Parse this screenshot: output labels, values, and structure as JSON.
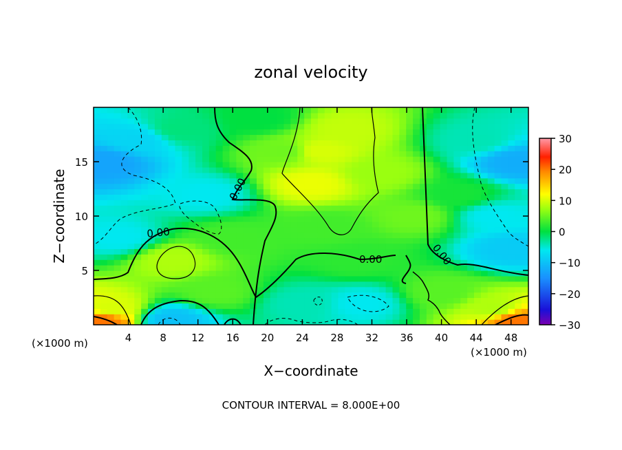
{
  "chart_data": {
    "type": "heatmap",
    "title": "zonal velocity",
    "xlabel": "X−coordinate",
    "ylabel": "Z−coordinate",
    "x_unit_left": "(×1000 m)",
    "x_unit_right": "(×1000 m)",
    "xlim": [
      0,
      50
    ],
    "ylim": [
      0,
      20
    ],
    "x_ticks": [
      4,
      8,
      12,
      16,
      20,
      24,
      28,
      32,
      36,
      40,
      44,
      48
    ],
    "y_ticks": [
      5,
      10,
      15
    ],
    "colorbar": {
      "min": -30,
      "max": 30,
      "ticks": [
        30,
        20,
        10,
        0,
        -10,
        -20,
        -30
      ],
      "tick_labels": [
        "30",
        "20",
        "10",
        "0",
        "−10",
        "−20",
        "−30"
      ]
    },
    "contour_labels": [
      "0.00",
      "0.00",
      "0.00",
      "0.00"
    ],
    "footer": "CONTOUR INTERVAL = 8.000E+00",
    "field_samples": [
      {
        "x": 1.5,
        "z": 15,
        "u": -13
      },
      {
        "x": 5,
        "z": 17,
        "u": -8
      },
      {
        "x": 3,
        "z": 8,
        "u": -6
      },
      {
        "x": 13,
        "z": 12,
        "u": -6
      },
      {
        "x": 9,
        "z": 6,
        "u": 8
      },
      {
        "x": 2,
        "z": 1.5,
        "u": 10
      },
      {
        "x": 1,
        "z": 0.4,
        "u": 20
      },
      {
        "x": 9,
        "z": 0.5,
        "u": -10
      },
      {
        "x": 14,
        "z": 3,
        "u": 4
      },
      {
        "x": 16,
        "z": 8,
        "u": 3
      },
      {
        "x": 22,
        "z": 16,
        "u": 5
      },
      {
        "x": 26,
        "z": 16,
        "u": 10
      },
      {
        "x": 25,
        "z": 13,
        "u": 11
      },
      {
        "x": 29,
        "z": 18,
        "u": 9
      },
      {
        "x": 33,
        "z": 14,
        "u": 7
      },
      {
        "x": 37,
        "z": 10,
        "u": 5
      },
      {
        "x": 27,
        "z": 9,
        "u": 3
      },
      {
        "x": 30,
        "z": 6,
        "u": 2
      },
      {
        "x": 24,
        "z": 2,
        "u": -4
      },
      {
        "x": 31,
        "z": 2,
        "u": -6
      },
      {
        "x": 40,
        "z": 3,
        "u": 4
      },
      {
        "x": 42,
        "z": 12,
        "u": 1
      },
      {
        "x": 44,
        "z": 17,
        "u": -4
      },
      {
        "x": 46,
        "z": 10,
        "u": -6
      },
      {
        "x": 48.5,
        "z": 15,
        "u": -12
      },
      {
        "x": 48,
        "z": 7,
        "u": -9
      },
      {
        "x": 46,
        "z": 1.5,
        "u": 8
      },
      {
        "x": 48.5,
        "z": 0.4,
        "u": 20
      },
      {
        "x": 19,
        "z": 19,
        "u": 0
      },
      {
        "x": 10,
        "z": 18,
        "u": -2
      }
    ]
  }
}
